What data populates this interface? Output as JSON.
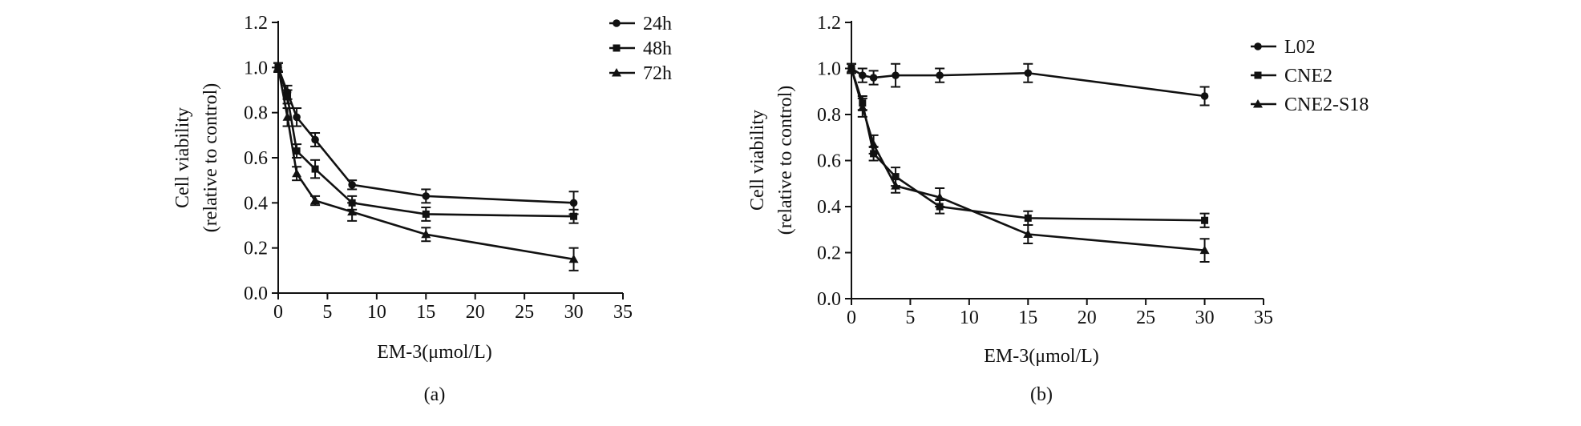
{
  "chart_data": [
    {
      "type": "line",
      "panel_label": "(a)",
      "xlabel": "EM-3(μmol/L)",
      "ylabel_line1": "Cell viability",
      "ylabel_line2": "(relative to control)",
      "xlim": [
        0,
        35
      ],
      "ylim": [
        0,
        1.2
      ],
      "xticks": [
        0,
        5,
        10,
        15,
        20,
        25,
        30,
        35
      ],
      "xtick_labels": [
        "0",
        "5",
        "10",
        "15",
        "20",
        "25",
        "30",
        "35"
      ],
      "yticks": [
        0,
        0.2,
        0.4,
        0.6,
        0.8,
        1.0,
        1.2
      ],
      "ytick_labels": [
        "0.0",
        "0.2",
        "0.4",
        "0.6",
        "0.8",
        "1.0",
        "1.2"
      ],
      "grid": false,
      "legend_position": "top-right",
      "x": [
        0,
        0.94,
        1.88,
        3.75,
        7.5,
        15,
        30
      ],
      "series": [
        {
          "name": "24h",
          "marker": "circle",
          "values": [
            1.0,
            0.89,
            0.78,
            0.68,
            0.48,
            0.43,
            0.4
          ],
          "errors": [
            0.02,
            0.03,
            0.04,
            0.03,
            0.02,
            0.03,
            0.05
          ]
        },
        {
          "name": "48h",
          "marker": "square",
          "values": [
            1.0,
            0.87,
            0.63,
            0.55,
            0.4,
            0.35,
            0.34
          ],
          "errors": [
            0.02,
            0.03,
            0.03,
            0.04,
            0.03,
            0.03,
            0.03
          ]
        },
        {
          "name": "72h",
          "marker": "triangle",
          "values": [
            1.0,
            0.78,
            0.53,
            0.41,
            0.36,
            0.26,
            0.15
          ],
          "errors": [
            0.02,
            0.04,
            0.03,
            0.02,
            0.04,
            0.03,
            0.05
          ]
        }
      ]
    },
    {
      "type": "line",
      "panel_label": "(b)",
      "xlabel": "EM-3(μmol/L)",
      "ylabel_line1": "Cell viability",
      "ylabel_line2": "(relative to control)",
      "xlim": [
        0,
        35
      ],
      "ylim": [
        0,
        1.2
      ],
      "xticks": [
        0,
        5,
        10,
        15,
        20,
        25,
        30,
        35
      ],
      "xtick_labels": [
        "0",
        "5",
        "10",
        "15",
        "20",
        "25",
        "30",
        "35"
      ],
      "yticks": [
        0,
        0.2,
        0.4,
        0.6,
        0.8,
        1.0,
        1.2
      ],
      "ytick_labels": [
        "0.0",
        "0.2",
        "0.4",
        "0.6",
        "0.8",
        "1.0",
        "1.2"
      ],
      "grid": false,
      "legend_position": "top-right",
      "x": [
        0,
        0.94,
        1.88,
        3.75,
        7.5,
        15,
        30
      ],
      "series": [
        {
          "name": "L02",
          "marker": "circle",
          "values": [
            1.0,
            0.97,
            0.96,
            0.97,
            0.97,
            0.98,
            0.88
          ],
          "errors": [
            0.02,
            0.03,
            0.03,
            0.05,
            0.03,
            0.04,
            0.04
          ]
        },
        {
          "name": "CNE2",
          "marker": "square",
          "values": [
            1.0,
            0.85,
            0.63,
            0.53,
            0.4,
            0.35,
            0.34
          ],
          "errors": [
            0.02,
            0.03,
            0.03,
            0.04,
            0.03,
            0.03,
            0.03
          ]
        },
        {
          "name": "CNE2-S18",
          "marker": "triangle",
          "values": [
            1.0,
            0.83,
            0.67,
            0.49,
            0.44,
            0.28,
            0.21
          ],
          "errors": [
            0.02,
            0.04,
            0.04,
            0.03,
            0.04,
            0.04,
            0.05
          ]
        }
      ]
    }
  ]
}
